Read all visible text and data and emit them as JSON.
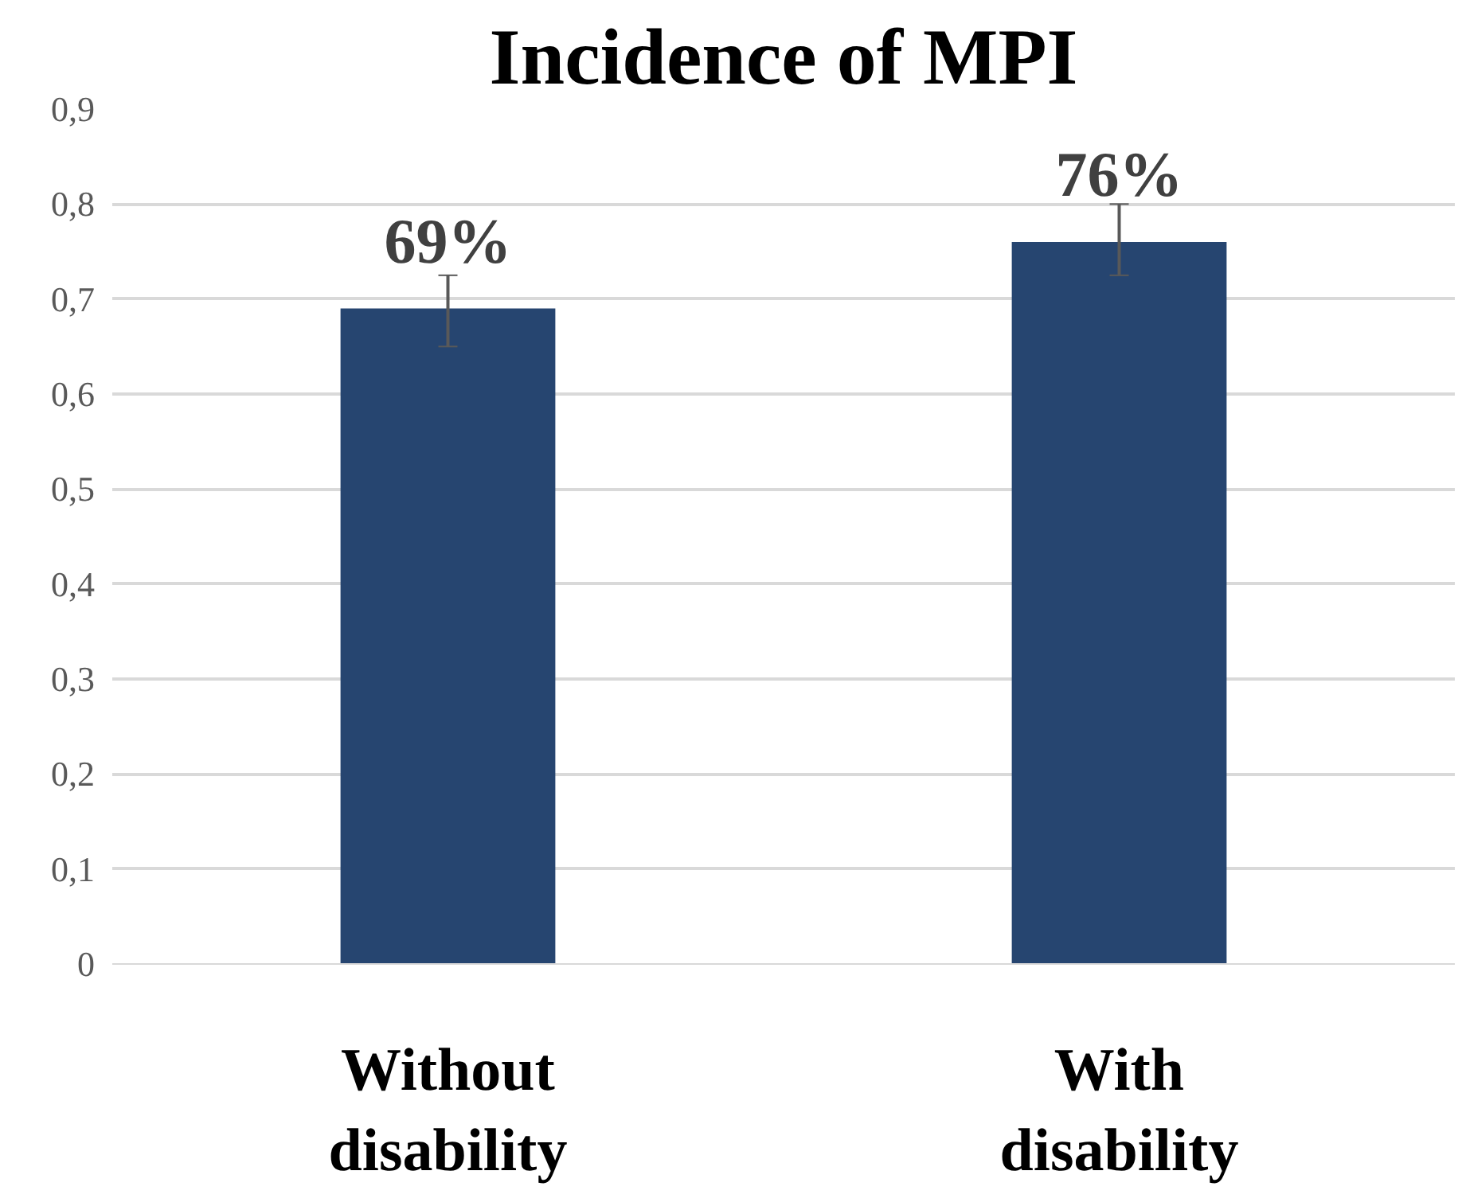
{
  "chart_data": {
    "type": "bar",
    "title": "Incidence of MPI",
    "categories": [
      "Without disability",
      "With disability"
    ],
    "values": [
      0.69,
      0.76
    ],
    "value_labels": [
      "69%",
      "76%"
    ],
    "errors": [
      [
        0.65,
        0.725
      ],
      [
        0.725,
        0.8
      ]
    ],
    "color": "#264570",
    "ylim": [
      0,
      0.9
    ],
    "yticks": [
      0,
      {
        "value": 0.1,
        "label": "0,1"
      },
      {
        "value": 0.2,
        "label": "0,2"
      },
      {
        "value": 0.3,
        "label": "0,3"
      },
      {
        "value": 0.4,
        "label": "0,4"
      },
      {
        "value": 0.5,
        "label": "0,5"
      },
      {
        "value": 0.6,
        "label": "0,6"
      },
      {
        "value": 0.7,
        "label": "0,7"
      },
      {
        "value": 0.8,
        "label": "0,8"
      },
      {
        "value": 0.9,
        "label": "0,9"
      }
    ],
    "grid": "y"
  }
}
